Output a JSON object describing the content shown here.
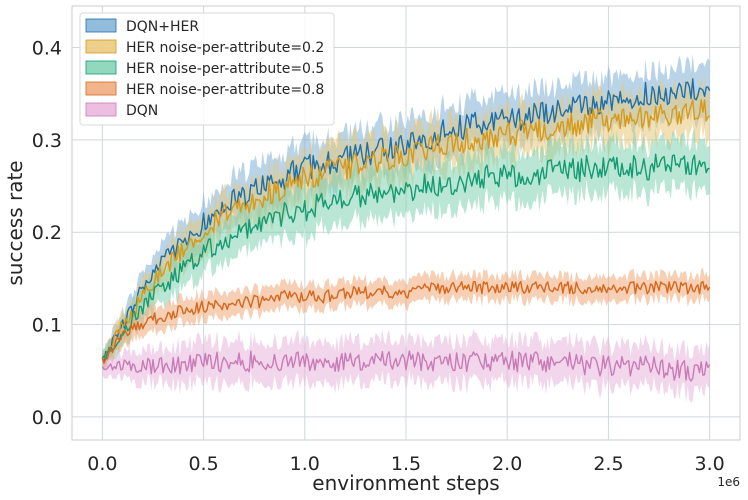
{
  "chart_data": {
    "type": "line",
    "title": "",
    "xlabel": "environment steps",
    "ylabel": "success rate",
    "x_offset_label": "1e6",
    "xlim": [
      -0.15,
      3.15
    ],
    "ylim": [
      -0.025,
      0.445
    ],
    "x_ticks": [
      0.0,
      0.5,
      1.0,
      1.5,
      2.0,
      2.5,
      3.0
    ],
    "x_tick_labels": [
      "0.0",
      "0.5",
      "1.0",
      "1.5",
      "2.0",
      "2.5",
      "3.0"
    ],
    "y_ticks": [
      0.0,
      0.1,
      0.2,
      0.3,
      0.4
    ],
    "y_tick_labels": [
      "0.0",
      "0.1",
      "0.2",
      "0.3",
      "0.4"
    ],
    "grid": true,
    "legend_position": "top-left",
    "x": [
      0.0,
      0.1,
      0.2,
      0.3,
      0.4,
      0.5,
      0.6,
      0.7,
      0.8,
      0.9,
      1.0,
      1.1,
      1.2,
      1.3,
      1.4,
      1.5,
      1.6,
      1.7,
      1.8,
      1.9,
      2.0,
      2.1,
      2.2,
      2.3,
      2.4,
      2.5,
      2.6,
      2.7,
      2.8,
      2.9,
      3.0
    ],
    "series": [
      {
        "name": "DQN+HER",
        "color": "#1f6fa8",
        "band_color": "#7fb1d6",
        "values": [
          0.06,
          0.1,
          0.14,
          0.17,
          0.19,
          0.21,
          0.23,
          0.24,
          0.25,
          0.26,
          0.27,
          0.275,
          0.28,
          0.285,
          0.29,
          0.295,
          0.3,
          0.31,
          0.315,
          0.32,
          0.32,
          0.325,
          0.33,
          0.335,
          0.34,
          0.34,
          0.345,
          0.35,
          0.35,
          0.355,
          0.35
        ],
        "band": [
          0.01,
          0.015,
          0.02,
          0.02,
          0.025,
          0.025,
          0.025,
          0.03,
          0.03,
          0.03,
          0.03,
          0.03,
          0.03,
          0.03,
          0.03,
          0.03,
          0.03,
          0.03,
          0.03,
          0.03,
          0.03,
          0.03,
          0.03,
          0.03,
          0.03,
          0.03,
          0.03,
          0.03,
          0.03,
          0.03,
          0.035
        ]
      },
      {
        "name": "HER noise-per-attribute=0.2",
        "color": "#d69a1a",
        "band_color": "#e8c777",
        "values": [
          0.06,
          0.1,
          0.13,
          0.16,
          0.18,
          0.2,
          0.22,
          0.23,
          0.24,
          0.25,
          0.26,
          0.265,
          0.27,
          0.275,
          0.28,
          0.285,
          0.29,
          0.295,
          0.3,
          0.3,
          0.305,
          0.31,
          0.31,
          0.315,
          0.32,
          0.32,
          0.32,
          0.325,
          0.325,
          0.33,
          0.33
        ],
        "band": [
          0.01,
          0.015,
          0.02,
          0.02,
          0.025,
          0.025,
          0.025,
          0.025,
          0.03,
          0.03,
          0.03,
          0.03,
          0.03,
          0.03,
          0.03,
          0.03,
          0.03,
          0.03,
          0.03,
          0.03,
          0.03,
          0.03,
          0.03,
          0.03,
          0.03,
          0.03,
          0.03,
          0.03,
          0.03,
          0.03,
          0.03
        ]
      },
      {
        "name": "HER noise-per-attribute=0.5",
        "color": "#159b72",
        "band_color": "#7fd1b3",
        "values": [
          0.06,
          0.09,
          0.12,
          0.14,
          0.16,
          0.18,
          0.19,
          0.2,
          0.21,
          0.22,
          0.225,
          0.23,
          0.235,
          0.24,
          0.24,
          0.245,
          0.25,
          0.25,
          0.255,
          0.26,
          0.26,
          0.26,
          0.265,
          0.265,
          0.27,
          0.27,
          0.27,
          0.27,
          0.275,
          0.275,
          0.275
        ],
        "band": [
          0.01,
          0.015,
          0.02,
          0.02,
          0.025,
          0.025,
          0.025,
          0.025,
          0.025,
          0.03,
          0.03,
          0.03,
          0.03,
          0.03,
          0.03,
          0.03,
          0.03,
          0.03,
          0.03,
          0.03,
          0.03,
          0.03,
          0.03,
          0.03,
          0.03,
          0.03,
          0.03,
          0.03,
          0.03,
          0.03,
          0.03
        ]
      },
      {
        "name": "HER noise-per-attribute=0.8",
        "color": "#d5681d",
        "band_color": "#eea777",
        "values": [
          0.06,
          0.09,
          0.1,
          0.11,
          0.115,
          0.12,
          0.12,
          0.125,
          0.125,
          0.13,
          0.13,
          0.13,
          0.135,
          0.135,
          0.135,
          0.135,
          0.14,
          0.14,
          0.14,
          0.14,
          0.14,
          0.14,
          0.14,
          0.14,
          0.14,
          0.14,
          0.14,
          0.14,
          0.14,
          0.14,
          0.14
        ],
        "band": [
          0.01,
          0.015,
          0.015,
          0.015,
          0.015,
          0.015,
          0.015,
          0.015,
          0.015,
          0.015,
          0.015,
          0.015,
          0.015,
          0.015,
          0.015,
          0.015,
          0.015,
          0.015,
          0.015,
          0.015,
          0.015,
          0.015,
          0.015,
          0.015,
          0.015,
          0.015,
          0.015,
          0.015,
          0.015,
          0.015,
          0.015
        ]
      },
      {
        "name": "DQN",
        "color": "#c97bb8",
        "band_color": "#e8b4da",
        "values": [
          0.05,
          0.055,
          0.055,
          0.055,
          0.055,
          0.06,
          0.06,
          0.06,
          0.06,
          0.06,
          0.06,
          0.06,
          0.06,
          0.06,
          0.06,
          0.06,
          0.06,
          0.06,
          0.06,
          0.06,
          0.06,
          0.06,
          0.06,
          0.06,
          0.055,
          0.055,
          0.055,
          0.055,
          0.05,
          0.05,
          0.05
        ],
        "band": [
          0.01,
          0.015,
          0.02,
          0.02,
          0.025,
          0.025,
          0.025,
          0.025,
          0.025,
          0.025,
          0.025,
          0.025,
          0.025,
          0.025,
          0.025,
          0.025,
          0.025,
          0.025,
          0.025,
          0.025,
          0.025,
          0.025,
          0.025,
          0.025,
          0.025,
          0.025,
          0.025,
          0.025,
          0.025,
          0.025,
          0.025
        ]
      }
    ]
  }
}
